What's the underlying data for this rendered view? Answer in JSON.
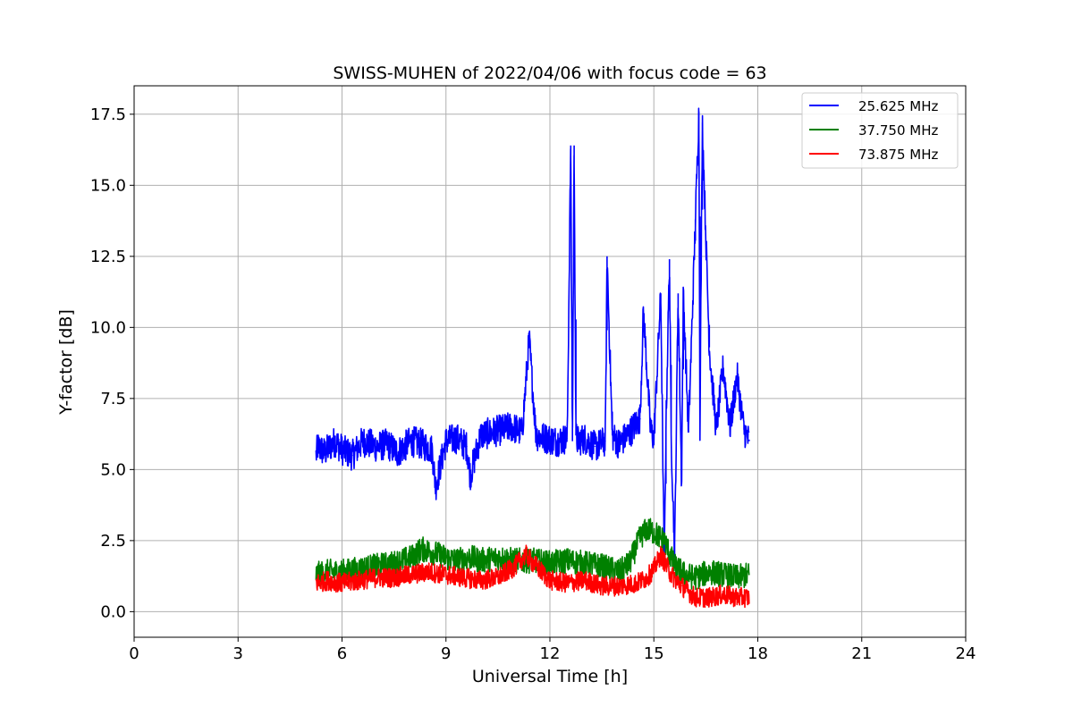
{
  "chart_data": {
    "type": "line",
    "title": "SWISS-MUHEN of 2022/04/06 with focus code = 63",
    "xlabel": "Universal Time [h]",
    "ylabel": "Y-factor [dB]",
    "xlim": [
      0,
      24
    ],
    "ylim": [
      -0.9,
      18.5
    ],
    "xticks": [
      0,
      3,
      6,
      9,
      12,
      15,
      18,
      21,
      24
    ],
    "xtick_labels": [
      "0",
      "3",
      "6",
      "9",
      "12",
      "15",
      "18",
      "21",
      "24"
    ],
    "yticks": [
      0,
      2.5,
      5,
      7.5,
      10,
      12.5,
      15,
      17.5
    ],
    "ytick_labels": [
      "0.0",
      "2.5",
      "5.0",
      "7.5",
      "10.0",
      "12.5",
      "15.0",
      "17.5"
    ],
    "grid": true,
    "legend_position": "top-right",
    "series": [
      {
        "name": "25.625 MHz",
        "color": "#0000ff",
        "x": [
          5.25,
          5.3,
          5.5,
          5.8,
          6.0,
          6.3,
          6.6,
          7.0,
          7.3,
          7.6,
          8.0,
          8.3,
          8.6,
          8.7,
          9.0,
          9.3,
          9.6,
          9.7,
          10.0,
          10.3,
          10.6,
          10.9,
          11.2,
          11.4,
          11.6,
          11.9,
          12.2,
          12.5,
          12.6,
          12.65,
          12.7,
          12.75,
          12.8,
          13.0,
          13.3,
          13.6,
          13.65,
          13.8,
          14.0,
          14.3,
          14.6,
          14.7,
          14.9,
          15.0,
          15.2,
          15.3,
          15.35,
          15.45,
          15.5,
          15.6,
          15.7,
          15.8,
          15.85,
          16.0,
          16.2,
          16.3,
          16.33,
          16.4,
          16.6,
          16.8,
          17.0,
          17.2,
          17.4,
          17.6,
          17.75
        ],
        "y": [
          5.5,
          5.8,
          5.6,
          6.0,
          5.7,
          5.5,
          6.0,
          5.8,
          5.9,
          5.6,
          6.0,
          5.9,
          5.7,
          4.4,
          6.0,
          6.1,
          5.8,
          4.8,
          6.2,
          6.3,
          6.4,
          6.5,
          6.3,
          9.6,
          6.2,
          6.1,
          6.0,
          6.1,
          16.4,
          6.0,
          16.4,
          6.2,
          6.0,
          6.1,
          5.8,
          6.0,
          12.5,
          6.2,
          5.9,
          6.3,
          6.8,
          10.6,
          6.4,
          6.1,
          11.2,
          1.5,
          6.5,
          12.4,
          6.2,
          2.0,
          11.2,
          4.5,
          11.2,
          6.3,
          13.8,
          17.6,
          6.5,
          17.2,
          9.3,
          6.4,
          8.6,
          6.5,
          8.3,
          6.4,
          6.0
        ]
      },
      {
        "name": "37.750 MHz",
        "color": "#008000",
        "x": [
          5.25,
          5.6,
          6.0,
          6.5,
          7.0,
          7.5,
          8.0,
          8.3,
          8.6,
          9.0,
          9.3,
          9.7,
          10.0,
          10.5,
          11.0,
          11.5,
          12.0,
          12.5,
          13.0,
          13.5,
          14.0,
          14.3,
          14.6,
          14.8,
          15.0,
          15.3,
          15.6,
          15.9,
          16.2,
          16.6,
          17.0,
          17.4,
          17.75
        ],
        "y": [
          1.3,
          1.4,
          1.4,
          1.5,
          1.6,
          1.7,
          1.9,
          2.2,
          2.1,
          1.9,
          1.8,
          1.9,
          1.8,
          1.9,
          1.8,
          1.8,
          1.7,
          1.8,
          1.7,
          1.6,
          1.4,
          1.7,
          2.6,
          2.9,
          2.8,
          2.5,
          1.6,
          1.3,
          1.2,
          1.4,
          1.3,
          1.2,
          1.3
        ]
      },
      {
        "name": "73.875 MHz",
        "color": "#ff0000",
        "x": [
          5.25,
          5.6,
          6.0,
          6.5,
          7.0,
          7.5,
          8.0,
          8.5,
          9.0,
          9.5,
          10.0,
          10.5,
          11.0,
          11.3,
          11.6,
          12.0,
          12.5,
          13.0,
          13.5,
          14.0,
          14.5,
          14.8,
          15.0,
          15.2,
          15.5,
          15.8,
          16.2,
          16.6,
          17.0,
          17.4,
          17.75
        ],
        "y": [
          1.0,
          1.1,
          1.0,
          1.1,
          1.2,
          1.2,
          1.3,
          1.4,
          1.3,
          1.2,
          1.1,
          1.2,
          1.6,
          2.0,
          1.6,
          1.1,
          1.0,
          1.1,
          0.9,
          0.9,
          1.0,
          1.2,
          1.5,
          2.0,
          1.3,
          0.9,
          0.5,
          0.5,
          0.6,
          0.5,
          0.5
        ]
      }
    ]
  }
}
